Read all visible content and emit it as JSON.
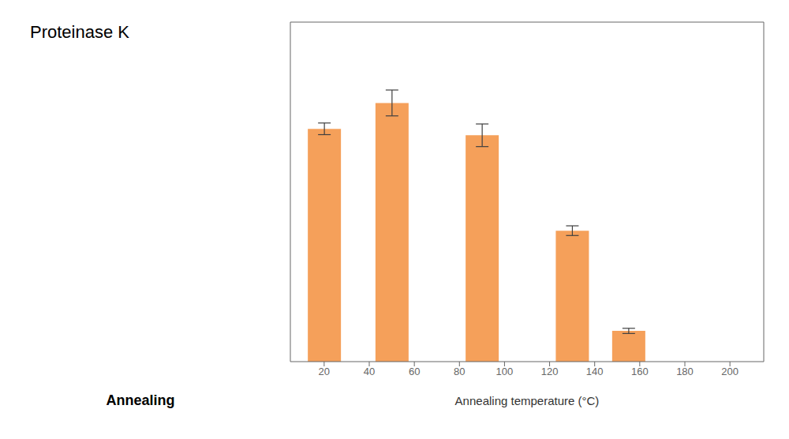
{
  "chart_data": {
    "type": "bar",
    "title": "Proteinase K",
    "annotations": [
      "Annealing"
    ],
    "x": [
      20,
      50,
      90,
      130,
      155
    ],
    "values": [
      0.72,
      0.8,
      0.7,
      0.405,
      0.095
    ],
    "errors": [
      0.018,
      0.04,
      0.035,
      0.015,
      0.008
    ],
    "color": "#F5A05A",
    "xlabel": "Annealing temperature (°C)",
    "xlim": [
      5,
      215
    ],
    "xticks": [
      20,
      40,
      60,
      80,
      100,
      120,
      140,
      160,
      180,
      200
    ],
    "ylim": [
      0,
      1.05
    ],
    "yticks": [],
    "tick_labels": "x"
  }
}
